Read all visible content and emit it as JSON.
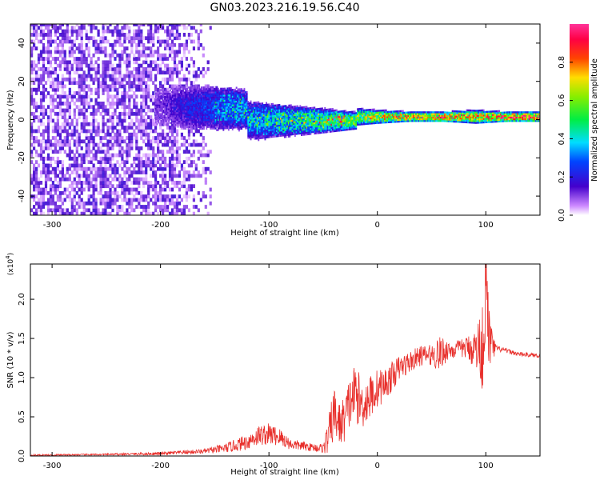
{
  "title": "GN03.2023.216.19.56.C40",
  "colors": {
    "snr_line": "#e8302c",
    "axis": "#000000",
    "background": "#ffffff"
  },
  "chart_data": [
    {
      "type": "heatmap",
      "xlabel": "Height of straight line (km)",
      "ylabel": "Frequency (Hz)",
      "xlim": [
        -320,
        150
      ],
      "ylim": [
        -50,
        50
      ],
      "x_ticks": [
        "-300",
        "-200",
        "-100",
        "0",
        "100"
      ],
      "y_ticks": [
        "-40",
        "-20",
        "0",
        "20",
        "40"
      ],
      "colorbar": {
        "label": "Normalized spectral amplitude",
        "range": [
          0,
          1
        ],
        "ticks": [
          "0.0",
          "0.2",
          "0.4",
          "0.6",
          "0.8"
        ],
        "colormap": "rainbow (white-purple at 0, blue, cyan, green, yellow, red, pink at 1)"
      },
      "features": {
        "noise_region_x": [
          -320,
          -165
        ],
        "signal_center_freq_hz": 0,
        "ridge": [
          {
            "x": -200,
            "freq_width": 14,
            "amp": 0.12
          },
          {
            "x": -170,
            "freq_width": 14,
            "amp": 0.22
          },
          {
            "x": -140,
            "freq_width": 13,
            "amp": 0.3
          },
          {
            "x": -110,
            "freq_width": 11,
            "amp": 0.35
          },
          {
            "x": -80,
            "freq_width": 9,
            "amp": 0.4
          },
          {
            "x": -50,
            "freq_width": 7,
            "amp": 0.5
          },
          {
            "x": -20,
            "freq_width": 5,
            "amp": 0.6
          },
          {
            "x": 0,
            "freq_width": 4,
            "amp": 0.68
          },
          {
            "x": 30,
            "freq_width": 3,
            "amp": 0.75
          },
          {
            "x": 60,
            "freq_width": 3,
            "amp": 0.8
          },
          {
            "x": 90,
            "freq_width": 4,
            "amp": 0.7
          },
          {
            "x": 120,
            "freq_width": 3,
            "amp": 0.85
          },
          {
            "x": 150,
            "freq_width": 3,
            "amp": 0.85
          }
        ]
      }
    },
    {
      "type": "line",
      "xlabel": "Height of straight line (km)",
      "ylabel": "SNR (10 * v/v)",
      "y_multiplier_label": "(x10",
      "y_multiplier_exp": "4",
      "y_multiplier_close": ")",
      "xlim": [
        -320,
        150
      ],
      "ylim": [
        0,
        24500
      ],
      "x_ticks": [
        "-300",
        "-200",
        "-100",
        "0",
        "100"
      ],
      "y_ticks": [
        "0.0",
        "0.5",
        "1.0",
        "1.5",
        "2.0"
      ],
      "series": [
        {
          "x": [
            -320,
            -250,
            -200,
            -160,
            -140,
            -120,
            -110,
            -100,
            -90,
            -80,
            -70,
            -60,
            -50,
            -45,
            -40,
            -35,
            -30,
            -25,
            -20,
            -15,
            -10,
            -5,
            0,
            5,
            10,
            15,
            20,
            30,
            40,
            50,
            55,
            60,
            65,
            70,
            80,
            90,
            95,
            98,
            100,
            103,
            106,
            110,
            120,
            130,
            150
          ],
          "values": [
            100,
            200,
            300,
            600,
            1000,
            1800,
            2600,
            2800,
            2400,
            1500,
            1300,
            1100,
            1000,
            2500,
            5500,
            4000,
            4800,
            7000,
            8200,
            6500,
            7000,
            7800,
            8600,
            9000,
            9500,
            10400,
            11200,
            12000,
            12800,
            12900,
            13000,
            13200,
            13600,
            13500,
            13800,
            13700,
            14000,
            14500,
            24000,
            15000,
            13800,
            13700,
            13400,
            13000,
            12800
          ],
          "noise_amp": [
            100,
            100,
            200,
            300,
            600,
            1000,
            1300,
            1400,
            1200,
            700,
            600,
            500,
            600,
            2500,
            3500,
            2800,
            3000,
            3500,
            3800,
            3200,
            3000,
            2800,
            2500,
            2200,
            2000,
            1800,
            1600,
            1400,
            1300,
            1300,
            2200,
            2000,
            1300,
            1100,
            1200,
            2500,
            4500,
            7000,
            6000,
            4500,
            2000,
            400,
            300,
            300,
            250
          ]
        }
      ]
    }
  ]
}
